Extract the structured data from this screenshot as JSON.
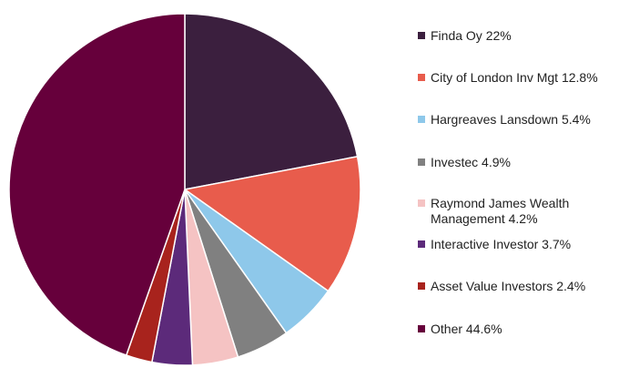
{
  "chart_data": {
    "type": "pie",
    "title": "",
    "start_angle_deg": 0,
    "direction": "clockwise",
    "slices": [
      {
        "label": "Finda Oy",
        "value": 22,
        "display": "Finda Oy  22%",
        "color": "#3b1f3e"
      },
      {
        "label": "City of London Inv Mgt",
        "value": 12.8,
        "display": "City of London Inv Mgt  12.8%",
        "color": "#e85c4c"
      },
      {
        "label": "Hargreaves Lansdown",
        "value": 5.4,
        "display": "Hargreaves Lansdown  5.4%",
        "color": "#8ec8ea"
      },
      {
        "label": "Investec",
        "value": 4.9,
        "display": "Investec  4.9%",
        "color": "#808080"
      },
      {
        "label": "Raymond James Wealth Management",
        "value": 4.2,
        "display": "Raymond James Wealth\nManagement  4.2%",
        "color": "#f5c3c3"
      },
      {
        "label": "Interactive Investor",
        "value": 3.7,
        "display": "Interactive Investor  3.7%",
        "color": "#5c2a7a"
      },
      {
        "label": "Asset Value Investors",
        "value": 2.4,
        "display": "Asset Value Investors  2.4%",
        "color": "#a8231d"
      },
      {
        "label": "Other",
        "value": 44.6,
        "display": "Other  44.6%",
        "color": "#66003b"
      }
    ],
    "legend": "right"
  }
}
